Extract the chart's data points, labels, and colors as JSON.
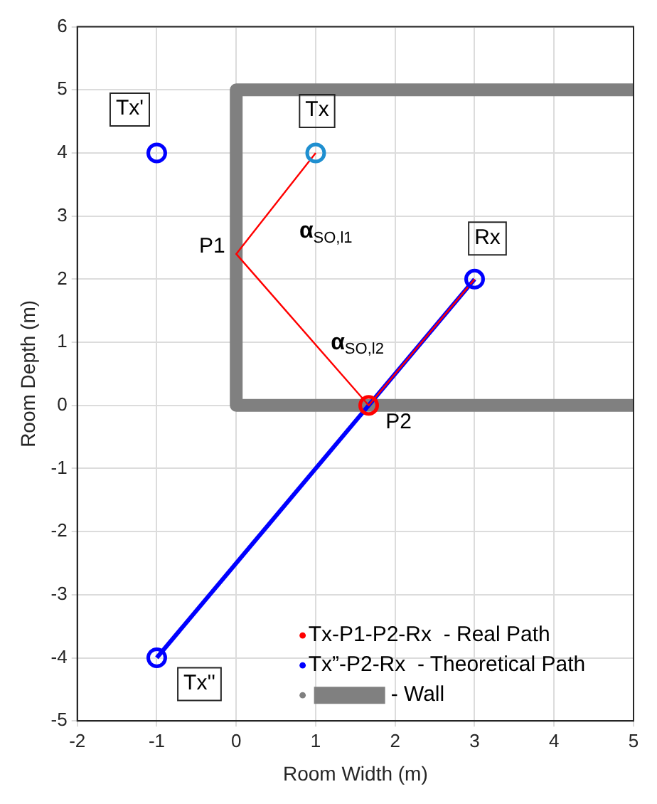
{
  "chart_data": {
    "type": "line",
    "xlabel": "Room Width (m)",
    "ylabel": "Room Depth (m)",
    "xlim": [
      -2,
      5
    ],
    "xticks": [
      -2,
      -1,
      0,
      1,
      2,
      3,
      4,
      5
    ],
    "ylim": [
      -5,
      6
    ],
    "yticks": [
      -5,
      -4,
      -3,
      -2,
      -1,
      0,
      1,
      2,
      3,
      4,
      5,
      6
    ],
    "grid": true,
    "legend": "bottom right",
    "series": [
      {
        "name": "- Wall",
        "color": "#808080",
        "x": [
          5,
          0,
          0,
          5
        ],
        "values": [
          5,
          5,
          0,
          0
        ]
      },
      {
        "name": "Tx-P1-P2-Rx  - Real Path",
        "color": "#ff0000",
        "x": [
          1,
          0,
          1.667,
          3
        ],
        "values": [
          4,
          2.4,
          0,
          2
        ]
      },
      {
        "name": "Tx”-P2-Rx  - Theoretical Path",
        "color": "#0000ff",
        "x": [
          -1,
          3
        ],
        "values": [
          -4,
          2
        ]
      },
      {
        "type": "scatter",
        "marker": "circle",
        "x": [
          -1,
          1,
          -1,
          3,
          1.667
        ],
        "values": [
          4,
          4,
          -4,
          2,
          0
        ],
        "colors": [
          "#0000ff",
          "#1f8fd0",
          "#0000ff",
          "#0000ff",
          "#ff0000"
        ]
      }
    ],
    "annotations": [
      {
        "text": "Tx'",
        "x": -1,
        "y": 4
      },
      {
        "text": "Tx",
        "x": 1,
        "y": 4
      },
      {
        "text": "Rx",
        "x": 3,
        "y": 2
      },
      {
        "text": "Tx''",
        "x": -1,
        "y": -4
      },
      {
        "text": "P1",
        "x": 0,
        "y": 2.4
      },
      {
        "text": "P2",
        "x": 1.667,
        "y": 0
      },
      {
        "text": "α$_{SO,l1}$",
        "x": 0,
        "y": 2.4
      },
      {
        "text": "α$_{SO,l2}$",
        "x": 1.667,
        "y": 0
      }
    ]
  }
}
